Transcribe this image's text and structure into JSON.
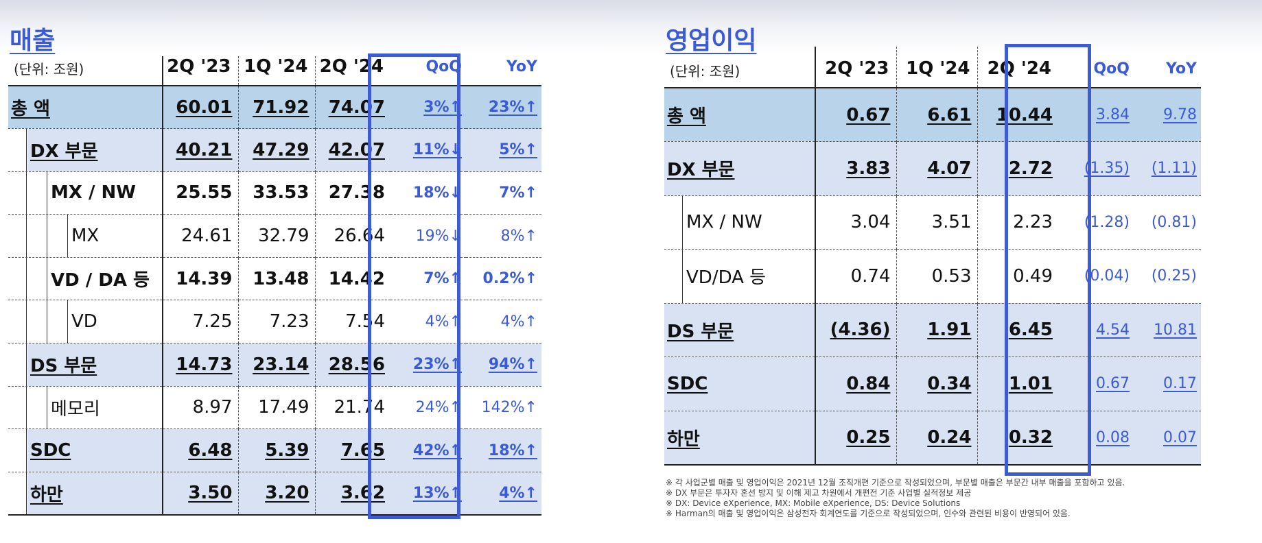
{
  "left": {
    "title": "매출",
    "unit": "(단위: 조원)",
    "headers": [
      "2Q '23",
      "1Q '24",
      "2Q '24",
      "QoQ",
      "YoY"
    ],
    "rows": [
      {
        "label": "총 액",
        "level": 0,
        "bold": true,
        "underline": true,
        "shade": "dark",
        "v": [
          "60.01",
          "71.92",
          "74.07"
        ],
        "qoq": "3%↑",
        "yoy": "23%↑"
      },
      {
        "label": "DX 부문",
        "level": 1,
        "bold": true,
        "underline": true,
        "shade": "light",
        "v": [
          "40.21",
          "47.29",
          "42.07"
        ],
        "qoq": "11%↓",
        "yoy": "5%↑"
      },
      {
        "label": "MX / NW",
        "level": 2,
        "bold": true,
        "underline": false,
        "shade": "none",
        "v": [
          "25.55",
          "33.53",
          "27.38"
        ],
        "qoq": "18%↓",
        "yoy": "7%↑"
      },
      {
        "label": "MX",
        "level": 3,
        "bold": false,
        "underline": false,
        "shade": "none",
        "v": [
          "24.61",
          "32.79",
          "26.64"
        ],
        "qoq": "19%↓",
        "yoy": "8%↑"
      },
      {
        "label": "VD / DA 등",
        "level": 2,
        "bold": true,
        "underline": false,
        "shade": "none",
        "v": [
          "14.39",
          "13.48",
          "14.42"
        ],
        "qoq": "7%↑",
        "yoy": "0.2%↑"
      },
      {
        "label": "VD",
        "level": 3,
        "bold": false,
        "underline": false,
        "shade": "none",
        "v": [
          "7.25",
          "7.23",
          "7.54"
        ],
        "qoq": "4%↑",
        "yoy": "4%↑"
      },
      {
        "label": "DS 부문",
        "level": 1,
        "bold": true,
        "underline": true,
        "shade": "light",
        "v": [
          "14.73",
          "23.14",
          "28.56"
        ],
        "qoq": "23%↑",
        "yoy": "94%↑"
      },
      {
        "label": "메모리",
        "level": 2,
        "bold": false,
        "underline": false,
        "shade": "none",
        "v": [
          "8.97",
          "17.49",
          "21.74"
        ],
        "qoq": "24%↑",
        "yoy": "142%↑"
      },
      {
        "label": "SDC",
        "level": 1,
        "bold": true,
        "underline": true,
        "shade": "light",
        "v": [
          "6.48",
          "5.39",
          "7.65"
        ],
        "qoq": "42%↑",
        "yoy": "18%↑"
      },
      {
        "label": "하만",
        "level": 1,
        "bold": true,
        "underline": true,
        "shade": "light",
        "v": [
          "3.50",
          "3.20",
          "3.62"
        ],
        "qoq": "13%↑",
        "yoy": "4%↑"
      }
    ]
  },
  "right": {
    "title": "영업이익",
    "unit": "(단위: 조원)",
    "headers": [
      "2Q '23",
      "1Q '24",
      "2Q '24",
      "QoQ",
      "YoY"
    ],
    "rows": [
      {
        "label": "총 액",
        "level": 0,
        "bold": true,
        "underline": true,
        "shade": "dark",
        "v": [
          "0.67",
          "6.61",
          "10.44"
        ],
        "qoq": "3.84",
        "yoy": "9.78"
      },
      {
        "label": "DX 부문",
        "level": 0,
        "bold": true,
        "underline": true,
        "shade": "light",
        "v": [
          "3.83",
          "4.07",
          "2.72"
        ],
        "qoq": "(1.35)",
        "yoy": "(1.11)"
      },
      {
        "label": "MX / NW",
        "level": 1,
        "bold": false,
        "underline": false,
        "shade": "none",
        "v": [
          "3.04",
          "3.51",
          "2.23"
        ],
        "qoq": "(1.28)",
        "yoy": "(0.81)"
      },
      {
        "label": "VD/DA 등",
        "level": 1,
        "bold": false,
        "underline": false,
        "shade": "none",
        "v": [
          "0.74",
          "0.53",
          "0.49"
        ],
        "qoq": "(0.04)",
        "yoy": "(0.25)"
      },
      {
        "label": "DS 부문",
        "level": 0,
        "bold": true,
        "underline": true,
        "shade": "light",
        "v": [
          "(4.36)",
          "1.91",
          "6.45"
        ],
        "qoq": "4.54",
        "yoy": "10.81"
      },
      {
        "label": "SDC",
        "level": 0,
        "bold": true,
        "underline": true,
        "shade": "light",
        "v": [
          "0.84",
          "0.34",
          "1.01"
        ],
        "qoq": "0.67",
        "yoy": "0.17"
      },
      {
        "label": "하만",
        "level": 0,
        "bold": true,
        "underline": true,
        "shade": "light",
        "v": [
          "0.25",
          "0.24",
          "0.32"
        ],
        "qoq": "0.08",
        "yoy": "0.07"
      }
    ]
  },
  "notes": [
    "※ 각 사업군별 매출 및 영업이익은 2021년 12월 조직개편 기준으로 작성되었으며, 부문별 매출은 부문간 내부 매출을 포함하고 있음.",
    "※ DX 부문은 투자자 혼선 방지 및 이해 제고 차원에서 개편전 기준 사업별 실적정보 제공",
    "※ DX: Device eXperience, MX: Mobile eXperience, DS: Device Solutions",
    "※ Harman의 매출 및 영업이익은 삼성전자 회계연도를 기준으로 작성되었으며, 인수와 관련된 비용이 반영되어 있음."
  ],
  "colors": {
    "dark_shade": "#b9d3ea",
    "light_shade": "#d8e2f3",
    "accent": "#3b5bd6",
    "box": "#3f5bd0"
  }
}
